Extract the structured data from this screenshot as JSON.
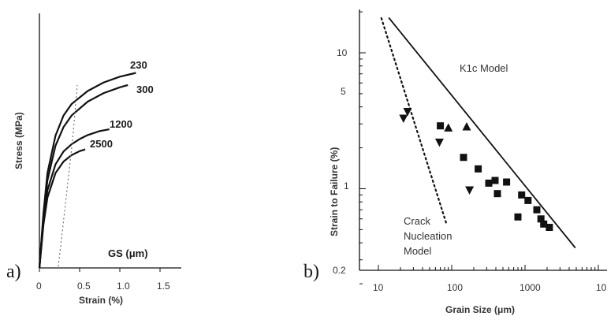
{
  "chart_data": [
    {
      "panel": "a)",
      "type": "line",
      "xlabel": "Strain (%)",
      "ylabel": "Stress (MPa)",
      "xlim": [
        0,
        1.5
      ],
      "x_ticks": [
        "0",
        "0.5",
        "1.0",
        "1.5"
      ],
      "legend_title": "GS (μm)",
      "series": [
        {
          "name": "230",
          "x": [
            0,
            0.05,
            0.1,
            0.2,
            0.3,
            0.4,
            0.6,
            0.8,
            1.0,
            1.2
          ],
          "y": [
            0,
            190,
            330,
            460,
            530,
            570,
            615,
            645,
            665,
            678
          ]
        },
        {
          "name": "300",
          "x": [
            0,
            0.05,
            0.1,
            0.2,
            0.3,
            0.4,
            0.6,
            0.8,
            1.0,
            1.1
          ],
          "y": [
            0,
            180,
            305,
            425,
            490,
            530,
            578,
            608,
            628,
            636
          ]
        },
        {
          "name": "1200",
          "x": [
            0,
            0.05,
            0.1,
            0.2,
            0.3,
            0.4,
            0.5,
            0.6,
            0.75,
            0.87
          ],
          "y": [
            0,
            160,
            270,
            360,
            405,
            430,
            448,
            462,
            476,
            482
          ]
        },
        {
          "name": "2500",
          "x": [
            0,
            0.05,
            0.1,
            0.2,
            0.3,
            0.4,
            0.5,
            0.57
          ],
          "y": [
            0,
            150,
            245,
            330,
            370,
            392,
            406,
            412
          ]
        }
      ],
      "grid": false,
      "colors": {
        "curve": "#111111",
        "dotted": "#555555"
      }
    },
    {
      "panel": "b)",
      "type": "scatter",
      "xscale": "log",
      "yscale": "log",
      "xlabel": "Grain Size (μm)",
      "ylabel": "Strain to Failure (%)",
      "xlim": [
        7,
        10000
      ],
      "ylim": [
        0.2,
        25
      ],
      "x_ticks": [
        "10",
        "100",
        "1000",
        "10"
      ],
      "y_ticks": [
        "10",
        "5",
        "1",
        "0.2"
      ],
      "annotations": {
        "k1c": "K1c Model",
        "crack_line1": "Crack",
        "crack_line2": "Nucleation",
        "crack_line3": "Model"
      },
      "lines": [
        {
          "name": "K1c Model",
          "style": "solid",
          "x": [
            14,
            4800
          ],
          "y": [
            18,
            0.37
          ]
        },
        {
          "name": "Crack Nucleation Model",
          "style": "dotted",
          "x": [
            11,
            85
          ],
          "y": [
            18,
            0.55
          ]
        }
      ],
      "points": {
        "down_triangles": [
          [
            22,
            3.3
          ],
          [
            25,
            3.7
          ],
          [
            68,
            2.2
          ],
          [
            175,
            0.98
          ]
        ],
        "up_triangles": [
          [
            90,
            2.8
          ],
          [
            160,
            2.85
          ]
        ],
        "squares": [
          [
            70,
            2.9
          ],
          [
            145,
            1.7
          ],
          [
            230,
            1.4
          ],
          [
            320,
            1.1
          ],
          [
            390,
            1.15
          ],
          [
            420,
            0.92
          ],
          [
            560,
            1.12
          ],
          [
            800,
            0.62
          ],
          [
            900,
            0.9
          ],
          [
            1100,
            0.82
          ],
          [
            1450,
            0.7
          ],
          [
            1650,
            0.6
          ],
          [
            1800,
            0.55
          ],
          [
            2150,
            0.52
          ]
        ]
      },
      "grid": false,
      "colors": {
        "marker": "#111111",
        "line": "#111111"
      }
    }
  ]
}
